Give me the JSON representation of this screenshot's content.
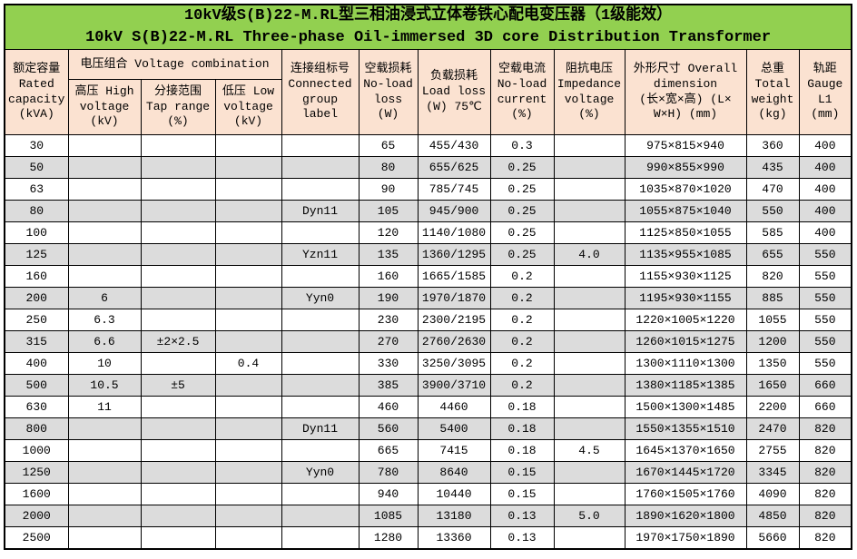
{
  "colors": {
    "title_bg": "#92d050",
    "header_bg": "#fbe2d1",
    "stripe_bg": "#dcdcdc",
    "border": "#000000"
  },
  "title": {
    "line1": "10kV级S(B)22-M.RL型三相油浸式立体卷铁心配电变压器（1级能效）",
    "line2": "10kV S(B)22-M.RL Three-phase Oil-immersed 3D core Distribution Transformer"
  },
  "headers": {
    "rated_capacity": "额定容量\nRated\ncapacity\n(kVA)",
    "voltage_combination": "电压组合 Voltage combination",
    "high_voltage": "高压 High\nvoltage\n(kV)",
    "tap_range": "分接范围\nTap range\n(%)",
    "low_voltage": "低压 Low\nvoltage\n(kV)",
    "connected_group": "连接组标号\nConnected\ngroup\nlabel",
    "no_load_loss": "空载损耗\nNo-load\nloss\n(W)",
    "load_loss": "负载损耗\nLoad loss\n(W) 75℃",
    "no_load_current": "空载电流\nNo-load\ncurrent\n(%)",
    "impedance_voltage": "阻抗电压\nImpedance\nvoltage\n(%)",
    "overall_dimension": "外形尺寸 Overall\ndimension\n(长×宽×高) (L×\nW×H) (mm)",
    "total_weight": "总重\nTotal\nweight\n(kg)",
    "gauge": "轨距\nGauge\nL1\n(mm)"
  },
  "chart_data": {
    "type": "table",
    "columns": [
      "capacity",
      "hv",
      "tap",
      "lv",
      "group",
      "nl_loss",
      "l_loss",
      "nl_cur",
      "imp",
      "dim",
      "wt",
      "gauge"
    ],
    "rows": [
      {
        "capacity": "30",
        "hv": "",
        "tap": "",
        "lv": "",
        "group": "",
        "nl_loss": "65",
        "l_loss": "455/430",
        "nl_cur": "0.3",
        "imp": "",
        "dim": "975×815×940",
        "wt": "360",
        "gauge": "400"
      },
      {
        "capacity": "50",
        "hv": "",
        "tap": "",
        "lv": "",
        "group": "",
        "nl_loss": "80",
        "l_loss": "655/625",
        "nl_cur": "0.25",
        "imp": "",
        "dim": "990×855×990",
        "wt": "435",
        "gauge": "400"
      },
      {
        "capacity": "63",
        "hv": "",
        "tap": "",
        "lv": "",
        "group": "",
        "nl_loss": "90",
        "l_loss": "785/745",
        "nl_cur": "0.25",
        "imp": "",
        "dim": "1035×870×1020",
        "wt": "470",
        "gauge": "400"
      },
      {
        "capacity": "80",
        "hv": "",
        "tap": "",
        "lv": "",
        "group": "Dyn11",
        "nl_loss": "105",
        "l_loss": "945/900",
        "nl_cur": "0.25",
        "imp": "",
        "dim": "1055×875×1040",
        "wt": "550",
        "gauge": "400"
      },
      {
        "capacity": "100",
        "hv": "",
        "tap": "",
        "lv": "",
        "group": "",
        "nl_loss": "120",
        "l_loss": "1140/1080",
        "nl_cur": "0.25",
        "imp": "",
        "dim": "1125×850×1055",
        "wt": "585",
        "gauge": "400"
      },
      {
        "capacity": "125",
        "hv": "",
        "tap": "",
        "lv": "",
        "group": "Yzn11",
        "nl_loss": "135",
        "l_loss": "1360/1295",
        "nl_cur": "0.25",
        "imp": "4.0",
        "dim": "1135×955×1085",
        "wt": "655",
        "gauge": "550"
      },
      {
        "capacity": "160",
        "hv": "",
        "tap": "",
        "lv": "",
        "group": "",
        "nl_loss": "160",
        "l_loss": "1665/1585",
        "nl_cur": "0.2",
        "imp": "",
        "dim": "1155×930×1125",
        "wt": "820",
        "gauge": "550"
      },
      {
        "capacity": "200",
        "hv": "6",
        "tap": "",
        "lv": "",
        "group": "Yyn0",
        "nl_loss": "190",
        "l_loss": "1970/1870",
        "nl_cur": "0.2",
        "imp": "",
        "dim": "1195×930×1155",
        "wt": "885",
        "gauge": "550"
      },
      {
        "capacity": "250",
        "hv": "6.3",
        "tap": "",
        "lv": "",
        "group": "",
        "nl_loss": "230",
        "l_loss": "2300/2195",
        "nl_cur": "0.2",
        "imp": "",
        "dim": "1220×1005×1220",
        "wt": "1055",
        "gauge": "550"
      },
      {
        "capacity": "315",
        "hv": "6.6",
        "tap": "±2×2.5",
        "lv": "",
        "group": "",
        "nl_loss": "270",
        "l_loss": "2760/2630",
        "nl_cur": "0.2",
        "imp": "",
        "dim": "1260×1015×1275",
        "wt": "1200",
        "gauge": "550"
      },
      {
        "capacity": "400",
        "hv": "10",
        "tap": "",
        "lv": "0.4",
        "group": "",
        "nl_loss": "330",
        "l_loss": "3250/3095",
        "nl_cur": "0.2",
        "imp": "",
        "dim": "1300×1110×1300",
        "wt": "1350",
        "gauge": "550"
      },
      {
        "capacity": "500",
        "hv": "10.5",
        "tap": "±5",
        "lv": "",
        "group": "",
        "nl_loss": "385",
        "l_loss": "3900/3710",
        "nl_cur": "0.2",
        "imp": "",
        "dim": "1380×1185×1385",
        "wt": "1650",
        "gauge": "660"
      },
      {
        "capacity": "630",
        "hv": "11",
        "tap": "",
        "lv": "",
        "group": "",
        "nl_loss": "460",
        "l_loss": "4460",
        "nl_cur": "0.18",
        "imp": "",
        "dim": "1500×1300×1485",
        "wt": "2200",
        "gauge": "660"
      },
      {
        "capacity": "800",
        "hv": "",
        "tap": "",
        "lv": "",
        "group": "Dyn11",
        "nl_loss": "560",
        "l_loss": "5400",
        "nl_cur": "0.18",
        "imp": "",
        "dim": "1550×1355×1510",
        "wt": "2470",
        "gauge": "820"
      },
      {
        "capacity": "1000",
        "hv": "",
        "tap": "",
        "lv": "",
        "group": "",
        "nl_loss": "665",
        "l_loss": "7415",
        "nl_cur": "0.18",
        "imp": "4.5",
        "dim": "1645×1370×1650",
        "wt": "2755",
        "gauge": "820"
      },
      {
        "capacity": "1250",
        "hv": "",
        "tap": "",
        "lv": "",
        "group": "Yyn0",
        "nl_loss": "780",
        "l_loss": "8640",
        "nl_cur": "0.15",
        "imp": "",
        "dim": "1670×1445×1720",
        "wt": "3345",
        "gauge": "820"
      },
      {
        "capacity": "1600",
        "hv": "",
        "tap": "",
        "lv": "",
        "group": "",
        "nl_loss": "940",
        "l_loss": "10440",
        "nl_cur": "0.15",
        "imp": "",
        "dim": "1760×1505×1760",
        "wt": "4090",
        "gauge": "820"
      },
      {
        "capacity": "2000",
        "hv": "",
        "tap": "",
        "lv": "",
        "group": "",
        "nl_loss": "1085",
        "l_loss": "13180",
        "nl_cur": "0.13",
        "imp": "5.0",
        "dim": "1890×1620×1800",
        "wt": "4850",
        "gauge": "820"
      },
      {
        "capacity": "2500",
        "hv": "",
        "tap": "",
        "lv": "",
        "group": "",
        "nl_loss": "1280",
        "l_loss": "13360",
        "nl_cur": "0.13",
        "imp": "",
        "dim": "1970×1750×1890",
        "wt": "5660",
        "gauge": "820"
      }
    ]
  }
}
